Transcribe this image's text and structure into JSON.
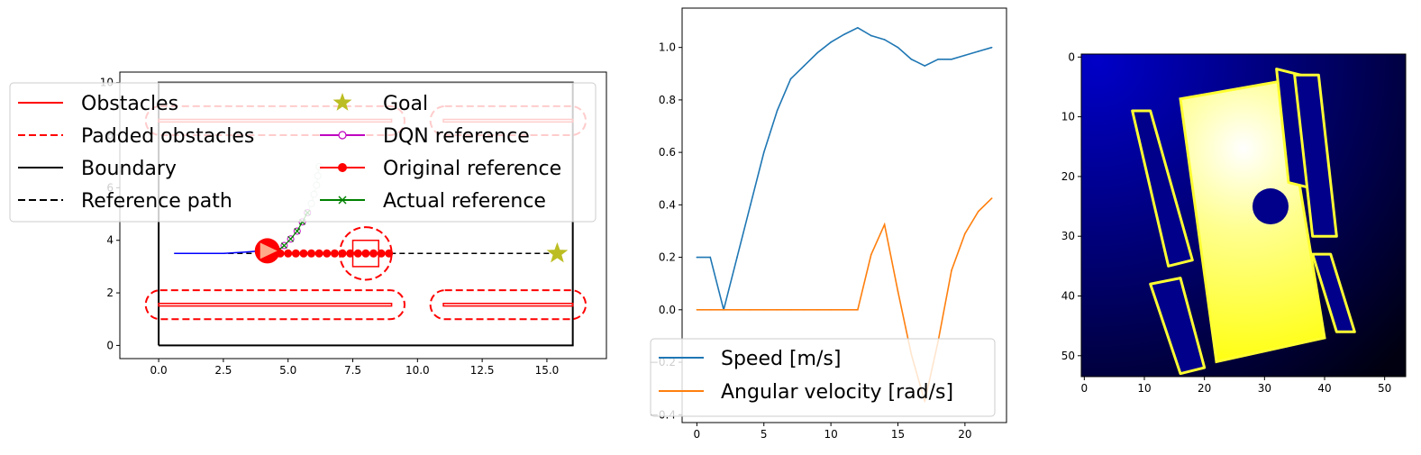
{
  "chart_data": [
    {
      "type": "line",
      "xlim": [
        -1.5,
        17.3
      ],
      "ylim": [
        -0.5,
        10.4
      ],
      "xticks": [
        "0.0",
        "2.5",
        "5.0",
        "7.5",
        "10.0",
        "12.5",
        "15.0"
      ],
      "yticks": [
        "0",
        "2",
        "4",
        "6",
        "8",
        "10"
      ],
      "legend": {
        "placement": "upper-left",
        "entries": [
          "Obstacles",
          "Padded obstacles",
          "Boundary",
          "Reference path",
          "Goal",
          "DQN reference",
          "Original reference",
          "Actual reference"
        ]
      },
      "colors": {
        "obstacle": "#ff0000",
        "goal": "#bcbd22",
        "dqn": "#bf00bf",
        "actual": "#008000",
        "robot_path": "#0000ff"
      },
      "boundary": [
        [
          0,
          0
        ],
        [
          16,
          0
        ],
        [
          16,
          10
        ],
        [
          0,
          10
        ],
        [
          0,
          0
        ]
      ],
      "obstacles": [
        [
          [
            0,
            1.5
          ],
          [
            9,
            1.5
          ],
          [
            9,
            1.6
          ],
          [
            0,
            1.6
          ]
        ],
        [
          [
            11,
            1.5
          ],
          [
            16,
            1.5
          ],
          [
            16,
            1.6
          ],
          [
            11,
            1.6
          ]
        ],
        [
          [
            0,
            8.5
          ],
          [
            9,
            8.5
          ],
          [
            9,
            8.6
          ],
          [
            0,
            8.6
          ]
        ],
        [
          [
            11,
            8.5
          ],
          [
            16,
            8.5
          ],
          [
            16,
            8.6
          ],
          [
            11,
            8.6
          ]
        ],
        [
          [
            7.5,
            3.0
          ],
          [
            8.5,
            3.0
          ],
          [
            8.5,
            4.0
          ],
          [
            7.5,
            4.0
          ]
        ]
      ],
      "padded_obstacles": [
        {
          "x": [
            -0.5,
            9.5
          ],
          "y": [
            1.0,
            2.1
          ]
        },
        {
          "x": [
            10.5,
            16.5
          ],
          "y": [
            1.0,
            2.1
          ]
        },
        {
          "x": [
            -0.5,
            9.5
          ],
          "y": [
            8.0,
            9.1
          ]
        },
        {
          "x": [
            10.5,
            16.5
          ],
          "y": [
            8.0,
            9.1
          ]
        },
        {
          "x": [
            7.0,
            9.0
          ],
          "y": [
            2.5,
            4.5
          ]
        }
      ],
      "reference_path": {
        "x": [
          0.6,
          15.4
        ],
        "y": [
          3.5,
          3.5
        ]
      },
      "goal": {
        "x": 15.4,
        "y": 3.5
      },
      "robot": {
        "x": 4.2,
        "y": 3.6
      },
      "robot_path": {
        "x": [
          0.6,
          1.5,
          2.5,
          3.3,
          4.0,
          4.2
        ],
        "y": [
          3.5,
          3.5,
          3.5,
          3.55,
          3.6,
          3.6
        ]
      },
      "original_reference": {
        "x": [
          4.4,
          4.7,
          5.0,
          5.3,
          5.6,
          5.9,
          6.2,
          6.5,
          6.8,
          7.1,
          7.4,
          7.7,
          8.0,
          8.3,
          8.6,
          8.9
        ],
        "y": [
          3.5,
          3.5,
          3.5,
          3.5,
          3.5,
          3.5,
          3.5,
          3.5,
          3.5,
          3.5,
          3.5,
          3.5,
          3.5,
          3.5,
          3.5,
          3.5
        ]
      },
      "dqn_reference": {
        "x": [
          4.6,
          4.85,
          5.1,
          5.35,
          5.55,
          5.75,
          5.9,
          6.0,
          6.1,
          6.15,
          6.2
        ],
        "y": [
          3.6,
          3.8,
          4.05,
          4.35,
          4.7,
          5.05,
          5.4,
          5.75,
          6.1,
          6.45,
          6.8
        ]
      },
      "actual_reference": {
        "x": [
          4.6,
          4.85,
          5.1,
          5.35,
          5.55,
          5.75
        ],
        "y": [
          3.6,
          3.8,
          4.05,
          4.35,
          4.7,
          5.05
        ]
      }
    },
    {
      "type": "line",
      "xlim": [
        -1.1,
        23.1
      ],
      "ylim": [
        -0.43,
        1.15
      ],
      "xticks": [
        "0",
        "5",
        "10",
        "15",
        "20"
      ],
      "yticks": [
        "-0.4",
        "-0.2",
        "0.0",
        "0.2",
        "0.4",
        "0.6",
        "0.8",
        "1.0"
      ],
      "legend": {
        "placement": "lower-left"
      },
      "x": [
        0,
        1,
        2,
        3,
        4,
        5,
        6,
        7,
        8,
        9,
        10,
        11,
        12,
        13,
        14,
        15,
        16,
        17,
        18,
        19,
        20,
        21,
        22
      ],
      "series": [
        {
          "name": "Speed [m/s]",
          "color": "#1f77b4",
          "values": [
            0.2,
            0.2,
            0.0,
            0.2,
            0.4,
            0.6,
            0.76,
            0.88,
            0.93,
            0.98,
            1.02,
            1.05,
            1.075,
            1.045,
            1.03,
            1.0,
            0.955,
            0.93,
            0.955,
            0.955,
            0.97,
            0.985,
            1.0
          ]
        },
        {
          "name": "Angular velocity [rad/s]",
          "color": "#ff7f0e",
          "values": [
            0.0,
            0.0,
            0.0,
            0.0,
            0.0,
            0.0,
            0.0,
            0.0,
            0.0,
            0.0,
            0.0,
            0.0,
            0.0,
            0.21,
            0.325,
            0.07,
            -0.17,
            -0.35,
            -0.12,
            0.15,
            0.29,
            0.375,
            0.425
          ]
        }
      ]
    },
    {
      "type": "heatmap",
      "xlim": [
        -0.5,
        53.5
      ],
      "ylim": [
        53.5,
        -0.5
      ],
      "xticks": [
        "0",
        "10",
        "20",
        "30",
        "40",
        "50"
      ],
      "yticks": [
        "0",
        "10",
        "20",
        "30",
        "40",
        "50"
      ],
      "colors": {
        "background": "#000000",
        "field": "#00008a",
        "free_space": "#ffff00",
        "walls": "#ffff33"
      },
      "free_space": [
        [
          16,
          7
        ],
        [
          33,
          4
        ],
        [
          40,
          47
        ],
        [
          22,
          51
        ]
      ],
      "holes": [
        {
          "points": [
            [
              32,
              2
            ],
            [
              36,
              3
            ],
            [
              38,
              22
            ],
            [
              34,
              21
            ]
          ]
        },
        {
          "points": [
            [
              35,
              3
            ],
            [
              39,
              3
            ],
            [
              42,
              30
            ],
            [
              38,
              30
            ]
          ]
        },
        {
          "points": [
            [
              8,
              9
            ],
            [
              11,
              9
            ],
            [
              18,
              34
            ],
            [
              14,
              35
            ]
          ]
        },
        {
          "points": [
            [
              11,
              38
            ],
            [
              16,
              37
            ],
            [
              20,
              52
            ],
            [
              16,
              53
            ]
          ]
        },
        {
          "points": [
            [
              38,
              33
            ],
            [
              41,
              33
            ],
            [
              45,
              46
            ],
            [
              42,
              46
            ]
          ]
        }
      ],
      "blob": {
        "x": 31,
        "y": 25,
        "r": 3
      }
    }
  ]
}
